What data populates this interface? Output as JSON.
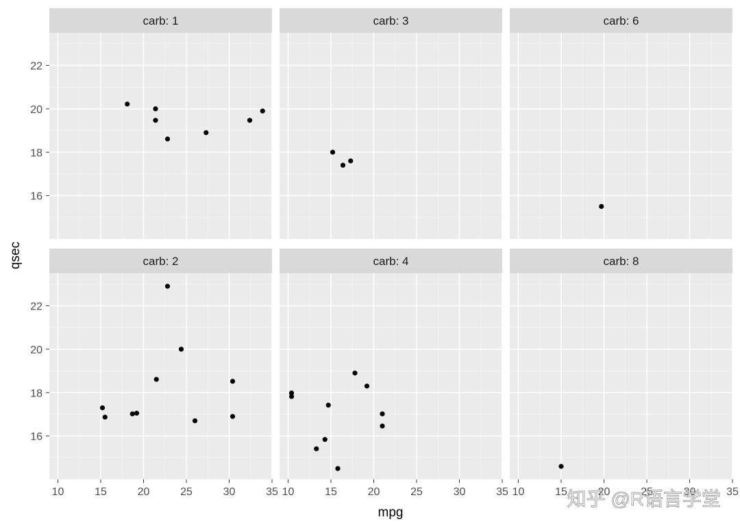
{
  "chart_data": {
    "type": "scatter",
    "facet_var": "carb",
    "xlabel": "mpg",
    "ylabel": "qsec",
    "xlim": [
      9,
      35
    ],
    "ylim": [
      14,
      23.5
    ],
    "x_ticks": [
      10,
      15,
      20,
      25,
      30,
      35
    ],
    "x_tick_labels": [
      "10",
      "15",
      "20",
      "25",
      "30",
      "35"
    ],
    "y_ticks": [
      16,
      18,
      20,
      22
    ],
    "y_tick_labels": [
      "16",
      "18",
      "20",
      "22"
    ],
    "grid": true,
    "panel_background": "#ebebeb",
    "strip_background": "#d9d9d9",
    "point_color": "#000000",
    "panels": [
      {
        "label": "carb: 1",
        "points": [
          {
            "x": 18.1,
            "y": 20.22
          },
          {
            "x": 21.4,
            "y": 20.0
          },
          {
            "x": 21.4,
            "y": 19.47
          },
          {
            "x": 22.8,
            "y": 18.61
          },
          {
            "x": 27.3,
            "y": 18.9
          },
          {
            "x": 32.4,
            "y": 19.47
          },
          {
            "x": 33.9,
            "y": 19.9
          }
        ]
      },
      {
        "label": "carb: 3",
        "points": [
          {
            "x": 15.2,
            "y": 18.0
          },
          {
            "x": 16.4,
            "y": 17.4
          },
          {
            "x": 17.3,
            "y": 17.6
          }
        ]
      },
      {
        "label": "carb: 6",
        "points": [
          {
            "x": 19.7,
            "y": 15.5
          }
        ]
      },
      {
        "label": "carb: 2",
        "points": [
          {
            "x": 15.2,
            "y": 17.3
          },
          {
            "x": 15.5,
            "y": 16.87
          },
          {
            "x": 18.7,
            "y": 17.02
          },
          {
            "x": 19.2,
            "y": 17.05
          },
          {
            "x": 21.5,
            "y": 18.61
          },
          {
            "x": 22.8,
            "y": 22.9
          },
          {
            "x": 24.4,
            "y": 20.0
          },
          {
            "x": 26.0,
            "y": 16.7
          },
          {
            "x": 30.4,
            "y": 18.52
          },
          {
            "x": 30.4,
            "y": 16.9
          }
        ]
      },
      {
        "label": "carb: 4",
        "points": [
          {
            "x": 10.4,
            "y": 17.98
          },
          {
            "x": 10.4,
            "y": 17.82
          },
          {
            "x": 13.3,
            "y": 15.41
          },
          {
            "x": 14.3,
            "y": 15.84
          },
          {
            "x": 14.7,
            "y": 17.42
          },
          {
            "x": 15.8,
            "y": 14.5
          },
          {
            "x": 17.8,
            "y": 18.9
          },
          {
            "x": 19.2,
            "y": 18.3
          },
          {
            "x": 21.0,
            "y": 16.46
          },
          {
            "x": 21.0,
            "y": 17.02
          }
        ]
      },
      {
        "label": "carb: 8",
        "points": [
          {
            "x": 15.0,
            "y": 14.6
          }
        ]
      }
    ]
  },
  "watermark": "知乎 @R语言学堂"
}
